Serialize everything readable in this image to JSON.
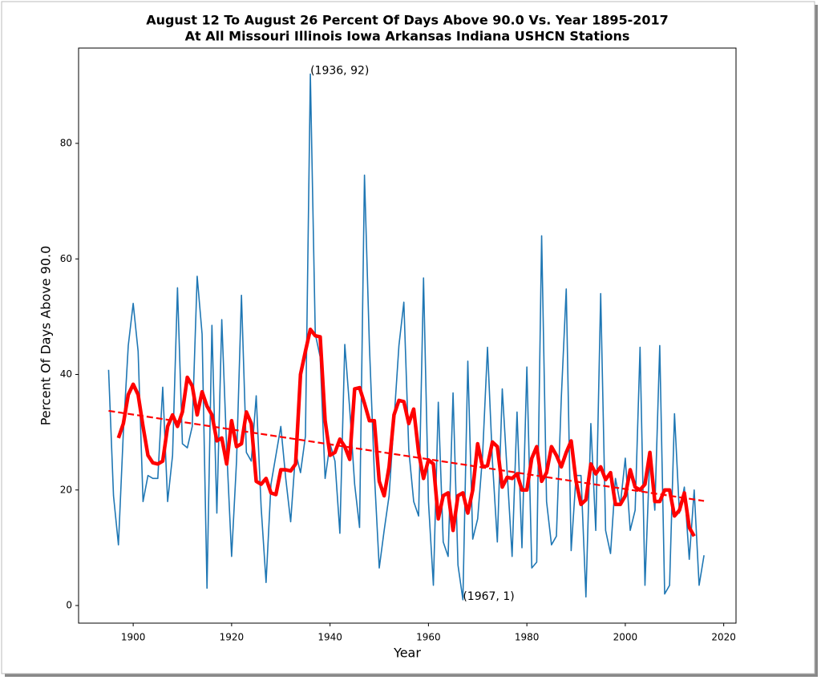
{
  "chart_data": {
    "type": "line",
    "title": [
      "August 12 To August 26 Percent Of Days Above 90.0 Vs. Year 1895-2017",
      "At All Missouri Illinois Iowa Arkansas Indiana USHCN Stations"
    ],
    "xlabel": "Year",
    "ylabel": "Percent Of Days Above 90.0",
    "xlim": [
      1888.9,
      2022.5
    ],
    "ylim": [
      -3.05,
      96.5
    ],
    "xticks": [
      1900,
      1920,
      1940,
      1960,
      1980,
      2000,
      2020
    ],
    "yticks": [
      0,
      20,
      40,
      60,
      80
    ],
    "grid": false,
    "series": [
      {
        "color": "#1f77b4",
        "width": 1.6,
        "dash": false,
        "x": [
          1895,
          1896,
          1897,
          1898,
          1899,
          1900,
          1901,
          1902,
          1903,
          1904,
          1905,
          1906,
          1907,
          1908,
          1909,
          1910,
          1911,
          1912,
          1913,
          1914,
          1915,
          1916,
          1917,
          1918,
          1919,
          1920,
          1921,
          1922,
          1923,
          1924,
          1925,
          1926,
          1927,
          1928,
          1929,
          1930,
          1931,
          1932,
          1933,
          1934,
          1935,
          1936,
          1937,
          1938,
          1939,
          1940,
          1941,
          1942,
          1943,
          1944,
          1945,
          1946,
          1947,
          1948,
          1949,
          1950,
          1951,
          1952,
          1953,
          1954,
          1955,
          1956,
          1957,
          1958,
          1959,
          1960,
          1961,
          1962,
          1963,
          1964,
          1965,
          1966,
          1967,
          1968,
          1969,
          1970,
          1971,
          1972,
          1973,
          1974,
          1975,
          1976,
          1977,
          1978,
          1979,
          1980,
          1981,
          1982,
          1983,
          1984,
          1985,
          1986,
          1987,
          1988,
          1989,
          1990,
          1991,
          1992,
          1993,
          1994,
          1995,
          1996,
          1997,
          1998,
          1999,
          2000,
          2001,
          2002,
          2003,
          2004,
          2005,
          2006,
          2007,
          2008,
          2009,
          2010,
          2011,
          2012,
          2013,
          2014,
          2015,
          2016
        ],
        "values": [
          40.8,
          19,
          10.5,
          30,
          45,
          52.3,
          44,
          18,
          22.5,
          22,
          22,
          37.8,
          18,
          26,
          55,
          28,
          27.3,
          31,
          57,
          47,
          3,
          48.5,
          16,
          49.5,
          27,
          8.5,
          25,
          53.7,
          26.5,
          25,
          36.3,
          17,
          4,
          21,
          26,
          31,
          22,
          14.5,
          26.5,
          23,
          29.3,
          92,
          47,
          43,
          22,
          28,
          25,
          12.5,
          45.2,
          34,
          21,
          13.5,
          74.5,
          45,
          23,
          6.5,
          13,
          19,
          32,
          45,
          52.5,
          27,
          18,
          15.5,
          56.7,
          18,
          3.5,
          35.2,
          11,
          8.5,
          36.8,
          7,
          1,
          42.3,
          11.5,
          15,
          26,
          44.7,
          25,
          11,
          37.5,
          23,
          8.5,
          33.5,
          10,
          41.3,
          6.5,
          7.5,
          64,
          18,
          10.5,
          12,
          36,
          54.8,
          9.5,
          22.5,
          22.5,
          1.5,
          31.5,
          13,
          54,
          13,
          9,
          22,
          17.5,
          25.5,
          13,
          16.5,
          44.7,
          3.5,
          26.5,
          16.5,
          45,
          2,
          3.5,
          33.2,
          16,
          20.5,
          8,
          20,
          3.5,
          8.7
        ]
      },
      {
        "color": "#ff0000",
        "width": 4.5,
        "dash": false,
        "x": [
          1897,
          1898,
          1899,
          1900,
          1901,
          1902,
          1903,
          1904,
          1905,
          1906,
          1907,
          1908,
          1909,
          1910,
          1911,
          1912,
          1913,
          1914,
          1915,
          1916,
          1917,
          1918,
          1919,
          1920,
          1921,
          1922,
          1923,
          1924,
          1925,
          1926,
          1927,
          1928,
          1929,
          1930,
          1931,
          1932,
          1933,
          1934,
          1935,
          1936,
          1937,
          1938,
          1939,
          1940,
          1941,
          1942,
          1943,
          1944,
          1945,
          1946,
          1947,
          1948,
          1949,
          1950,
          1951,
          1952,
          1953,
          1954,
          1955,
          1956,
          1957,
          1958,
          1959,
          1960,
          1961,
          1962,
          1963,
          1964,
          1965,
          1966,
          1967,
          1968,
          1969,
          1970,
          1971,
          1972,
          1973,
          1974,
          1975,
          1976,
          1977,
          1978,
          1979,
          1980,
          1981,
          1982,
          1983,
          1984,
          1985,
          1986,
          1987,
          1988,
          1989,
          1990,
          1991,
          1992,
          1993,
          1994,
          1995,
          1996,
          1997,
          1998,
          1999,
          2000,
          2001,
          2002,
          2003,
          2004,
          2005,
          2006,
          2007,
          2008,
          2009,
          2010,
          2011,
          2012,
          2013,
          2014
        ],
        "values": [
          29,
          31.5,
          36.5,
          38.3,
          36.5,
          31,
          26,
          24.7,
          24.5,
          25,
          31,
          33,
          31,
          33.5,
          39.5,
          38,
          33,
          37,
          34.5,
          33,
          28.5,
          29,
          24.5,
          32,
          27.5,
          28,
          33.5,
          31.5,
          21.5,
          21,
          22,
          19.5,
          19.2,
          23.5,
          23.5,
          23.3,
          24.5,
          40,
          44,
          47.8,
          46.7,
          46.5,
          32,
          26,
          26.5,
          28.8,
          27.5,
          25.3,
          37.5,
          37.7,
          35,
          32,
          32,
          21.5,
          19,
          24,
          33,
          35.5,
          35.3,
          31.5,
          34,
          26.5,
          22,
          25.2,
          24.5,
          15,
          19,
          19.5,
          13,
          19,
          19.5,
          16,
          20,
          28,
          24,
          24.2,
          28.3,
          27.5,
          20.5,
          22.2,
          22,
          22.8,
          20,
          20,
          25.5,
          27.5,
          21.5,
          23,
          27.5,
          26,
          24,
          26.5,
          28.5,
          21.5,
          17.5,
          18.3,
          24.5,
          22.8,
          24,
          21.8,
          23,
          17.5,
          17.5,
          19,
          23.5,
          20.5,
          20,
          21,
          26.5,
          18,
          18,
          20,
          20,
          15.5,
          16.5,
          19.5,
          13.5,
          12
        ]
      },
      {
        "color": "#ff0000",
        "width": 2.2,
        "dash": true,
        "x": [
          1895,
          2016
        ],
        "values": [
          33.7,
          18.1
        ]
      }
    ],
    "annotations": [
      {
        "text": "(1936, 92)",
        "x": 1936,
        "y": 92
      },
      {
        "text": "(1967, 1)",
        "x": 1967,
        "y": 1
      }
    ]
  }
}
